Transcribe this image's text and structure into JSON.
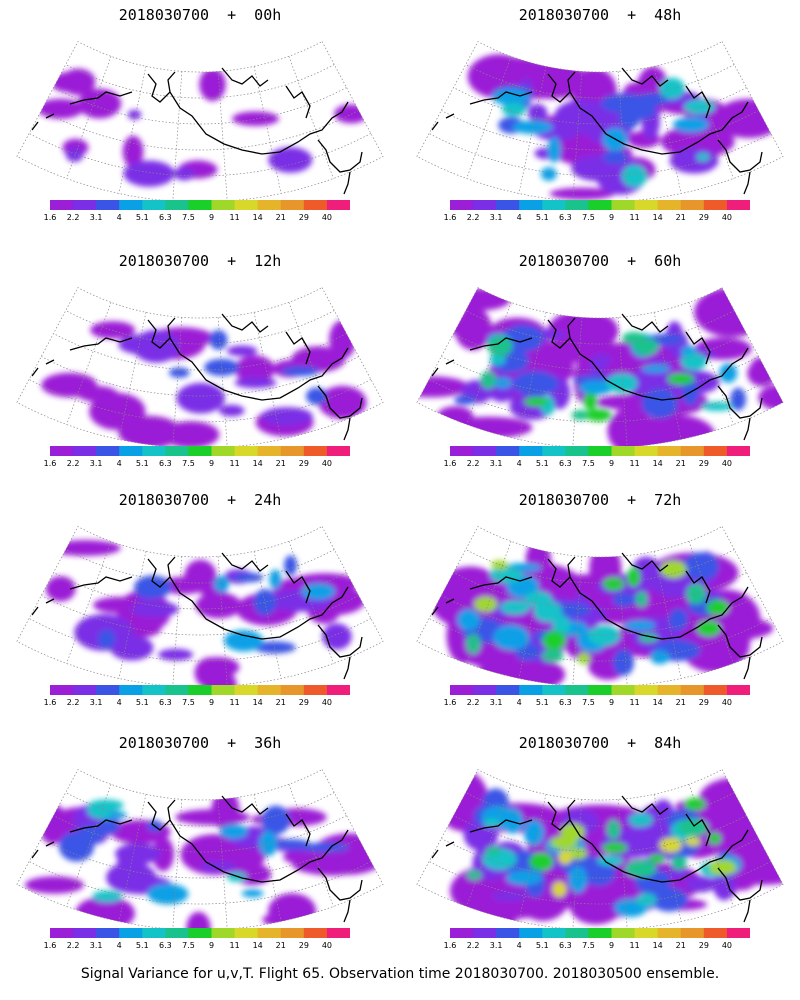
{
  "panels": [
    {
      "title": "2018030700  +  00h",
      "intensity": 0.12
    },
    {
      "title": "2018030700  +  48h",
      "intensity": 0.55
    },
    {
      "title": "2018030700  +  12h",
      "intensity": 0.25
    },
    {
      "title": "2018030700  +  60h",
      "intensity": 0.7
    },
    {
      "title": "2018030700  +  24h",
      "intensity": 0.38
    },
    {
      "title": "2018030700  +  72h",
      "intensity": 0.85
    },
    {
      "title": "2018030700  +  36h",
      "intensity": 0.5
    },
    {
      "title": "2018030700  +  84h",
      "intensity": 0.95
    }
  ],
  "colorbar": {
    "labels": [
      "1.6",
      "2.2",
      "3.1",
      "4",
      "5.1",
      "6.3",
      "7.5",
      "9",
      "11",
      "14",
      "21",
      "29",
      "40"
    ],
    "colors": [
      "#9b1fd6",
      "#7a2ee6",
      "#3a55e6",
      "#0aa0e6",
      "#14c3c8",
      "#1ac28c",
      "#1bcf2a",
      "#a0d82a",
      "#d8d82a",
      "#e6b42a",
      "#e6962a",
      "#ee5a2a",
      "#ee1e7a"
    ]
  },
  "footer": "Signal Variance for u,v,T. Flight 65. Observation time 2018030700. 2018030500 ensemble."
}
